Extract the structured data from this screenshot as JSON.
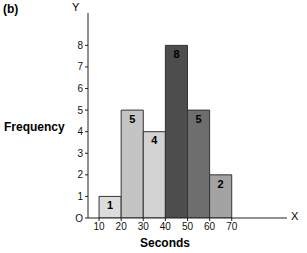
{
  "chart_data": {
    "type": "histogram",
    "title": "(b)",
    "xlabel": "Seconds",
    "ylabel": "Frequency",
    "annotations": [
      "Y",
      "X"
    ],
    "bins": [
      10,
      20,
      30,
      40,
      50,
      60,
      70
    ],
    "values": [
      1,
      5,
      4,
      8,
      5,
      2
    ],
    "colors": [
      "#dcdcdc",
      "#c4c4c4",
      "#d2d2d2",
      "#4d4d4d",
      "#6e6e6e",
      "#a3a3a3"
    ],
    "xlim": [
      5,
      95
    ],
    "xticks": [
      10,
      20,
      30,
      40,
      50,
      60,
      70
    ],
    "ylim": [
      0,
      9.5
    ],
    "yticks": [
      {
        "value": 0,
        "label": "O"
      },
      1,
      2,
      3,
      4,
      5,
      6,
      7,
      8
    ],
    "grid": false,
    "data_labels": true
  }
}
